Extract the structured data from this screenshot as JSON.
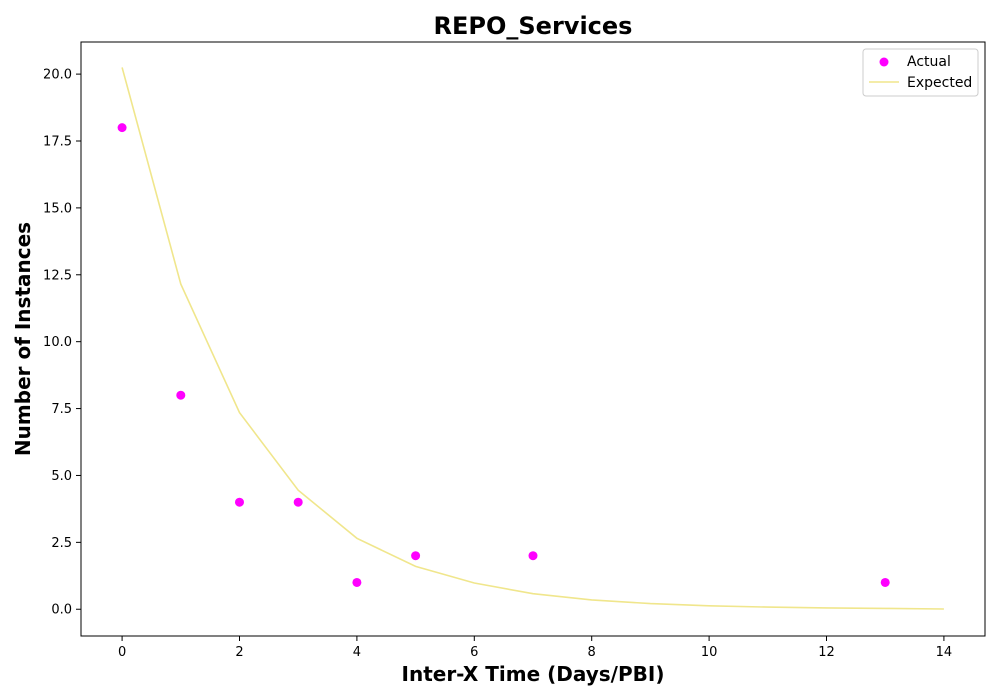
{
  "chart_data": {
    "type": "scatter",
    "title": "REPO_Services",
    "xlabel": "Inter-X Time (Days/PBI)",
    "ylabel": "Number of Instances",
    "xlim": [
      -0.7,
      14.7
    ],
    "ylim": [
      -1.0,
      21.2
    ],
    "xticks": [
      0,
      2,
      4,
      6,
      8,
      10,
      12,
      14
    ],
    "yticks": [
      0.0,
      2.5,
      5.0,
      7.5,
      10.0,
      12.5,
      15.0,
      17.5,
      20.0
    ],
    "xtick_labels": [
      "0",
      "2",
      "4",
      "6",
      "8",
      "10",
      "12",
      "14"
    ],
    "ytick_labels": [
      "0.0",
      "2.5",
      "5.0",
      "7.5",
      "10.0",
      "12.5",
      "15.0",
      "17.5",
      "20.0"
    ],
    "legend_position": "top-right",
    "grid": false,
    "series": [
      {
        "name": "Actual",
        "kind": "scatter",
        "color": "#ff00ff",
        "x": [
          0,
          1,
          2,
          3,
          4,
          5,
          7,
          13
        ],
        "y": [
          18,
          8,
          4,
          4,
          1,
          2,
          2,
          1
        ]
      },
      {
        "name": "Expected",
        "kind": "line",
        "color": "#f0e68c",
        "x": [
          0,
          1,
          2,
          3,
          4,
          5,
          6,
          7,
          8,
          9,
          10,
          11,
          12,
          13,
          14
        ],
        "y": [
          20.25,
          12.15,
          7.35,
          4.45,
          2.65,
          1.6,
          0.98,
          0.58,
          0.35,
          0.21,
          0.13,
          0.08,
          0.05,
          0.03,
          0.01
        ]
      }
    ]
  }
}
